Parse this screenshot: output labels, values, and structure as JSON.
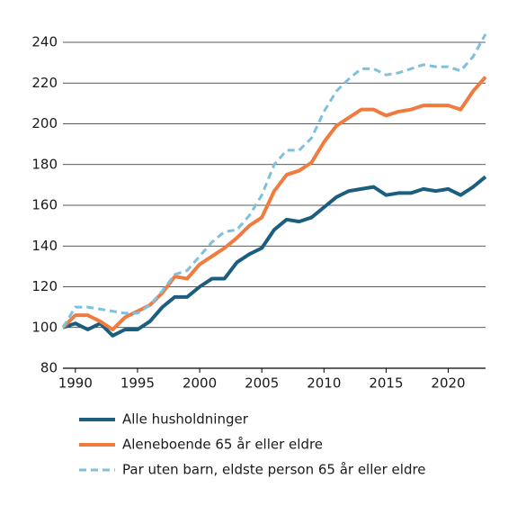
{
  "chart_data": {
    "type": "line",
    "x": [
      1989,
      1990,
      1991,
      1992,
      1993,
      1994,
      1995,
      1996,
      1997,
      1998,
      1999,
      2000,
      2001,
      2002,
      2003,
      2004,
      2005,
      2006,
      2007,
      2008,
      2009,
      2010,
      2011,
      2012,
      2013,
      2014,
      2015,
      2016,
      2017,
      2018,
      2019,
      2020,
      2021,
      2022,
      2023
    ],
    "xlim": [
      1989,
      2023
    ],
    "xticks": [
      1990,
      1995,
      2000,
      2005,
      2010,
      2015,
      2020
    ],
    "ylim": [
      80,
      240
    ],
    "yticks": [
      80,
      100,
      120,
      140,
      160,
      180,
      200,
      220,
      240
    ],
    "grid": true,
    "series": [
      {
        "name": "Alle husholdninger",
        "color": "#1b5e7e",
        "dash": false,
        "values": [
          100,
          102,
          99,
          102,
          96,
          99,
          99,
          103,
          110,
          115,
          115,
          120,
          124,
          124,
          132,
          136,
          139,
          148,
          153,
          152,
          154,
          159,
          164,
          167,
          168,
          169,
          165,
          166,
          166,
          168,
          167,
          168,
          165,
          169,
          174
        ]
      },
      {
        "name": "Aleneboende 65 år eller eldre",
        "color": "#f07b3f",
        "dash": false,
        "values": [
          100,
          106,
          106,
          103,
          99,
          105,
          108,
          111,
          117,
          125,
          124,
          131,
          135,
          139,
          144,
          150,
          154,
          167,
          175,
          177,
          181,
          191,
          199,
          203,
          207,
          207,
          204,
          206,
          207,
          209,
          209,
          209,
          207,
          216,
          223
        ]
      },
      {
        "name": "Par uten barn, eldste person 65 år eller eldre",
        "color": "#7ec0de",
        "dash": true,
        "values": [
          100,
          110,
          110,
          109,
          108,
          107,
          107,
          111,
          118,
          126,
          128,
          135,
          142,
          147,
          148,
          155,
          165,
          180,
          187,
          187,
          193,
          206,
          216,
          222,
          227,
          227,
          224,
          225,
          227,
          229,
          228,
          228,
          226,
          233,
          244
        ]
      }
    ]
  }
}
